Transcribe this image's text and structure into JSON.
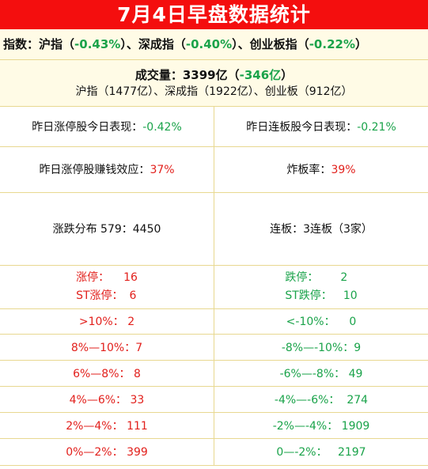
{
  "title": "7月4日早盘数据统计",
  "indices": {
    "label": "指数：",
    "items": [
      {
        "name": "沪指",
        "value": "-0.43%"
      },
      {
        "name": "深成指",
        "value": "-0.40%"
      },
      {
        "name": "创业板指",
        "value": "-0.22%"
      }
    ],
    "open": "（",
    "close": "）",
    "sep": "、"
  },
  "volume": {
    "label": "成交量：",
    "amount": "3399亿",
    "change": "-346亿",
    "breakdown": "沪指（1477亿）、深成指（1922亿）、创业板（912亿）"
  },
  "stats": {
    "zt_perf_label": "昨日涨停股今日表现：",
    "zt_perf_value": "-0.42%",
    "lb_perf_label": "昨日连板股今日表现：",
    "lb_perf_value": "-0.21%",
    "zt_profit_label": "昨日涨停股赚钱效应：",
    "zt_profit_value": "37%",
    "zhaban_label": "炸板率：",
    "zhaban_value": "39%",
    "dist_text": "涨跌分布 579：4450",
    "lianban_text": "连板：3连板（3家）"
  },
  "limit": {
    "up_label": "涨停：",
    "up_value": "16",
    "st_up_label": "ST涨停：",
    "st_up_value": "6",
    "down_label": "跌停：",
    "down_value": "2",
    "st_down_label": "ST跌停：",
    "st_down_value": "10"
  },
  "ranges": [
    {
      "up_label": ">10%：",
      "up_value": "2",
      "down_label": "<-10%：",
      "down_value": "0"
    },
    {
      "up_label": "8%—10%：",
      "up_value": "7",
      "down_label": "-8%—-10%：",
      "down_value": "9"
    },
    {
      "up_label": "6%—8%：",
      "up_value": "8",
      "down_label": "-6%—-8%：",
      "down_value": "49"
    },
    {
      "up_label": "4%—6%：",
      "up_value": "33",
      "down_label": "-4%—-6%：",
      "down_value": "274"
    },
    {
      "up_label": "2%—4%：",
      "up_value": "111",
      "down_label": "-2%—-4%：",
      "down_value": "1909"
    },
    {
      "up_label": "0%—2%：",
      "up_value": "399",
      "down_label": "0—-2%：",
      "down_value": "2197"
    }
  ],
  "colors": {
    "header_bg": "#f40e0e",
    "up": "#e2201c",
    "down": "#1aa34a",
    "band_bg": "#fffbe6",
    "border": "#e8d890"
  }
}
